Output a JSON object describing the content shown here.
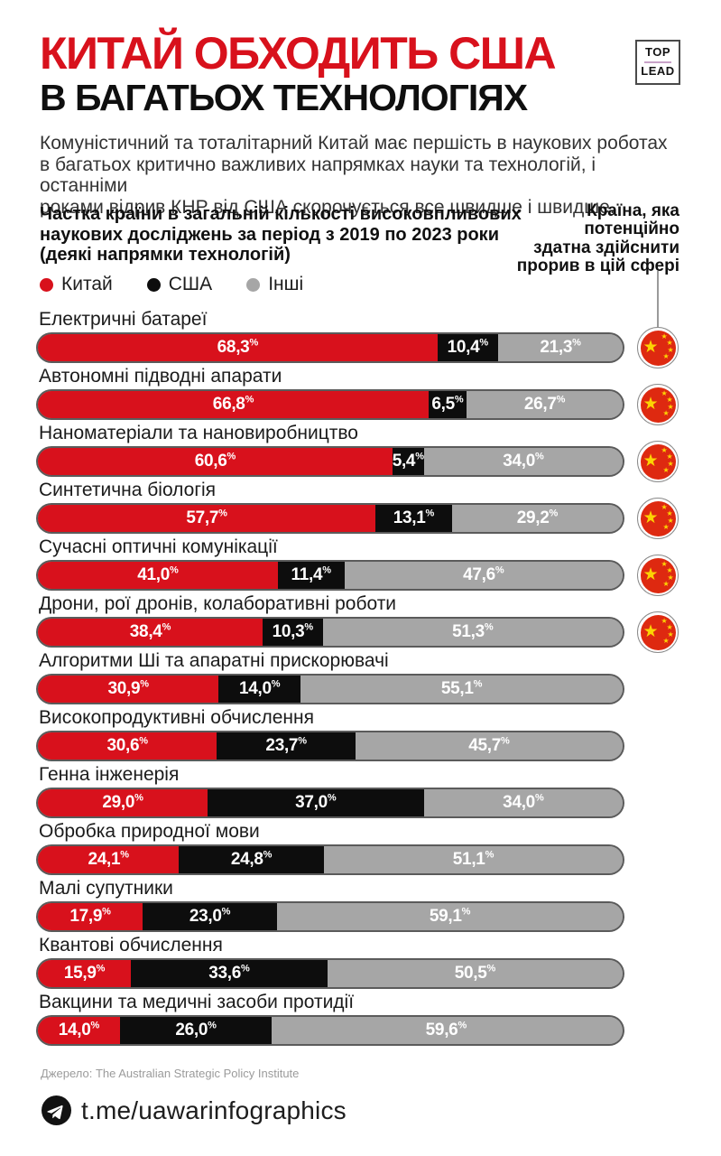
{
  "header": {
    "title_line1": "КИТАЙ ОБХОДИТЬ США",
    "title_line2": "В БАГАТЬОХ ТЕХНОЛОГІЯХ",
    "logo_top": "TOP",
    "logo_lead": "LEAD",
    "intro": "Комуністичний та тоталітарний Китай має першість в наукових роботах\nв багатьох критично важливих напрямках науки та технологій, і останніми\nроками відрив КНР від США скорочується все швидше і швидше."
  },
  "chart_header": {
    "left_title": "Частка країни в загальній кількості високовпливових\nнаукових досліджень за період з 2019 по 2023 роки\n(деякі напрямки технологій)",
    "right_title": "Країна, яка\nпотенційно\nздатна здійснити\nпрорив в цій сфері"
  },
  "legend": [
    {
      "label": "Китай",
      "color": "#d8111c"
    },
    {
      "label": "США",
      "color": "#0d0d0d"
    },
    {
      "label": "Інші",
      "color": "#a6a6a6"
    }
  ],
  "units": {
    "percent": "%"
  },
  "chart_data": {
    "type": "bar",
    "orientation": "horizontal",
    "stacked": true,
    "title": "Частка країни в загальній кількості високовпливових наукових досліджень за період з 2019 по 2023 роки (деякі напрямки технологій)",
    "series_names": [
      "Китай",
      "США",
      "Інші"
    ],
    "colors": {
      "china": "#d8111c",
      "usa": "#0d0d0d",
      "others": "#a6a6a6"
    },
    "xlim": [
      0,
      100
    ],
    "leader_note": "Країна, яка потенційно здатна здійснити прорив в цій сфері",
    "rows": [
      {
        "category": "Електричні батареї",
        "china": 68.3,
        "usa": 10.4,
        "others": 21.3,
        "china_label": "68,3",
        "usa_label": "10,4",
        "others_label": "21,3",
        "leader": "china"
      },
      {
        "category": "Автономні підводні апарати",
        "china": 66.8,
        "usa": 6.5,
        "others": 26.7,
        "china_label": "66,8",
        "usa_label": "6,5",
        "others_label": "26,7",
        "leader": "china"
      },
      {
        "category": "Наноматеріали та нановиробництво",
        "china": 60.6,
        "usa": 5.4,
        "others": 34.0,
        "china_label": "60,6",
        "usa_label": "5,4",
        "others_label": "34,0",
        "leader": "china"
      },
      {
        "category": "Синтетична біологія",
        "china": 57.7,
        "usa": 13.1,
        "others": 29.2,
        "china_label": "57,7",
        "usa_label": "13,1",
        "others_label": "29,2",
        "leader": "china"
      },
      {
        "category": "Сучасні оптичні комунікації",
        "china": 41.0,
        "usa": 11.4,
        "others": 47.6,
        "china_label": "41,0",
        "usa_label": "11,4",
        "others_label": "47,6",
        "leader": "china"
      },
      {
        "category": "Дрони, рої дронів, колаборативні роботи",
        "china": 38.4,
        "usa": 10.3,
        "others": 51.3,
        "china_label": "38,4",
        "usa_label": "10,3",
        "others_label": "51,3",
        "leader": "china"
      },
      {
        "category": "Алгоритми Ші та апаратні прискорювачі",
        "china": 30.9,
        "usa": 14.0,
        "others": 55.1,
        "china_label": "30,9",
        "usa_label": "14,0",
        "others_label": "55,1",
        "leader": null
      },
      {
        "category": "Високопродуктивні обчислення",
        "china": 30.6,
        "usa": 23.7,
        "others": 45.7,
        "china_label": "30,6",
        "usa_label": "23,7",
        "others_label": "45,7",
        "leader": null
      },
      {
        "category": "Генна інженерія",
        "china": 29.0,
        "usa": 37.0,
        "others": 34.0,
        "china_label": "29,0",
        "usa_label": "37,0",
        "others_label": "34,0",
        "leader": null
      },
      {
        "category": "Обробка природної мови",
        "china": 24.1,
        "usa": 24.8,
        "others": 51.1,
        "china_label": "24,1",
        "usa_label": "24,8",
        "others_label": "51,1",
        "leader": null
      },
      {
        "category": "Малі супутники",
        "china": 17.9,
        "usa": 23.0,
        "others": 59.1,
        "china_label": "17,9",
        "usa_label": "23,0",
        "others_label": "59,1",
        "leader": null
      },
      {
        "category": "Квантові обчислення",
        "china": 15.9,
        "usa": 33.6,
        "others": 50.5,
        "china_label": "15,9",
        "usa_label": "33,6",
        "others_label": "50,5",
        "leader": null
      },
      {
        "category": "Вакцини та медичні засоби протидії",
        "china": 14.0,
        "usa": 26.0,
        "others": 59.6,
        "china_label": "14,0",
        "usa_label": "26,0",
        "others_label": "59,6",
        "leader": null
      }
    ]
  },
  "source": "Джерело: The Australian Strategic Policy Institute",
  "footer": {
    "link": "t.me/uawarinfographics"
  }
}
